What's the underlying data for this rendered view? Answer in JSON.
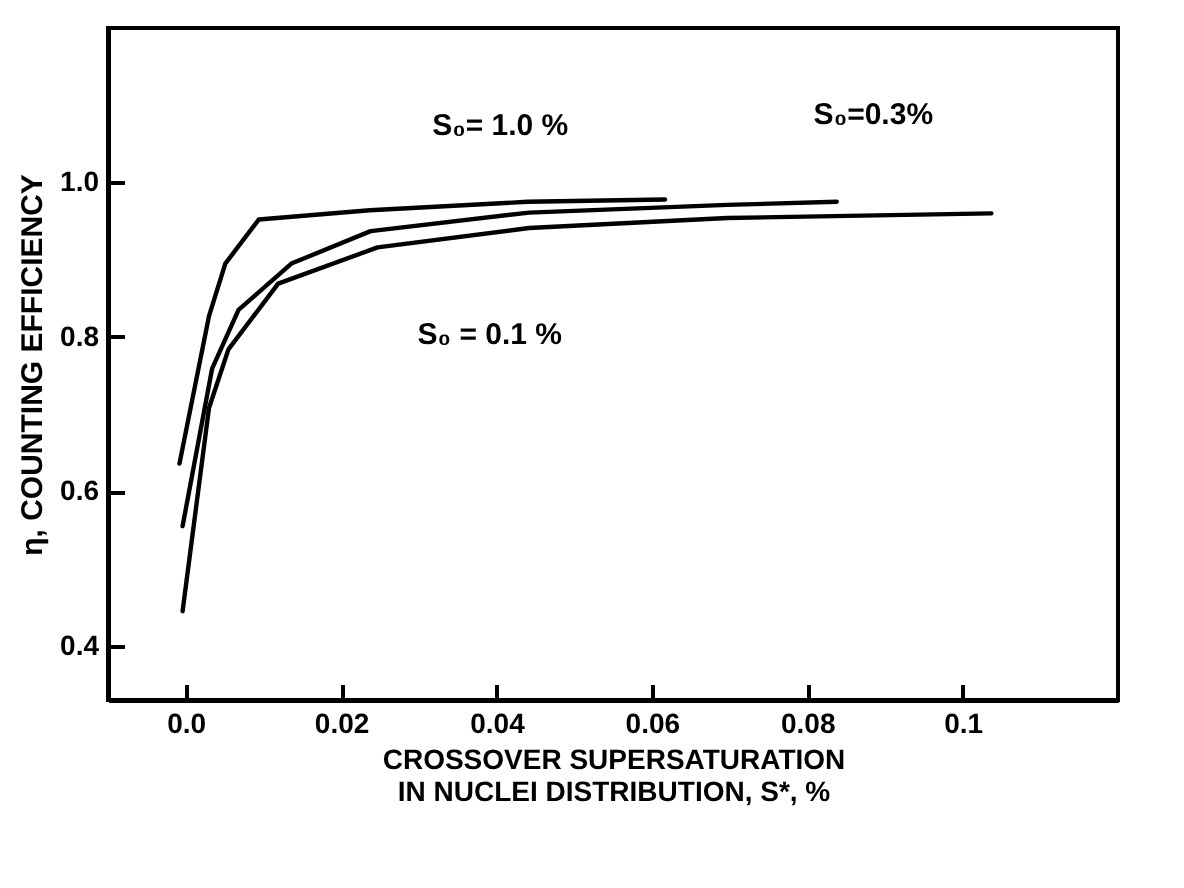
{
  "chart_data": {
    "type": "line",
    "xlabel": "CROSSOVER SUPERSATURATION\nIN NUCLEI DISTRIBUTION, S*, %",
    "ylabel": "η, COUNTING EFFICIENCY",
    "xlim": [
      -0.01,
      0.12
    ],
    "ylim": [
      0.33,
      1.2
    ],
    "xticks": [
      {
        "value": 0,
        "label": "0.0"
      },
      0.02,
      0.04,
      0.06,
      0.08,
      0.1
    ],
    "yticks": [
      0.4,
      0.6,
      0.8,
      {
        "value": 1,
        "label": "1.0"
      }
    ],
    "legend": false,
    "marker": "none",
    "line_style": "solid",
    "series": [
      {
        "color": "#000000",
        "x": [
          -0.0008,
          0.003,
          0.0051,
          0.0094,
          0.0237,
          0.044,
          0.0617
        ],
        "values": [
          0.636,
          0.827,
          0.895,
          0.952,
          0.964,
          0.975,
          0.978
        ]
      },
      {
        "color": "#000000",
        "x": [
          -0.0004,
          0.0034,
          0.0068,
          0.0136,
          0.0238,
          0.0442,
          0.0697,
          0.0838
        ],
        "values": [
          0.555,
          0.759,
          0.835,
          0.895,
          0.937,
          0.961,
          0.971,
          0.975
        ]
      },
      {
        "color": "#000000",
        "x": [
          -0.0004,
          0.003,
          0.0055,
          0.0119,
          0.0247,
          0.0442,
          0.0697,
          0.1037
        ],
        "values": [
          0.445,
          0.708,
          0.784,
          0.869,
          0.916,
          0.941,
          0.954,
          0.96
        ]
      }
    ],
    "annotations": [
      {
        "text": "S₀= 1.0 %",
        "x": 0.024,
        "y": 0.966
      },
      {
        "text": "S₀=0.3%",
        "x": 0.0731,
        "y": 0.98
      },
      {
        "text": "S₀ = 0.1 %",
        "x": 0.0247,
        "y": 0.913
      }
    ]
  }
}
